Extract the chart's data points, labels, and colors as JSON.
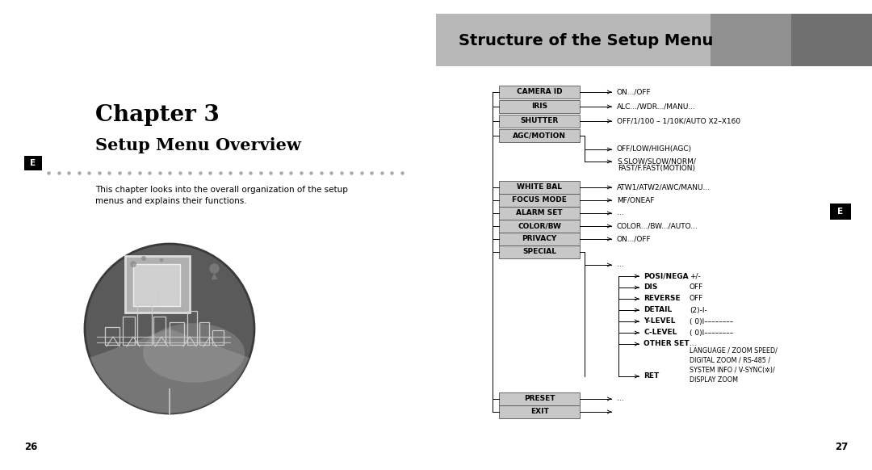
{
  "bg_color": "#ffffff",
  "left_page": {
    "chapter_title": "Chapter 3",
    "section_title": "Setup Menu Overview",
    "e_badge_text": "E",
    "body_text": "This chapter looks into the overall organization of the setup\nmenus and explains their functions.",
    "page_number": "26"
  },
  "right_page": {
    "header_text": "Structure of the Setup Menu",
    "e_badge_text": "E",
    "page_number": "27"
  },
  "menu_items_main": [
    {
      "label": "CAMERA ID",
      "value": "ON.../OFF"
    },
    {
      "label": "IRIS",
      "value": "ALC.../WDR.../MANU..."
    },
    {
      "label": "SHUTTER",
      "value": "OFF/1/100 – 1/10K/AUTO X2–X160"
    },
    {
      "label": "AGC/MOTION",
      "value": "OFF/LOW/HIGH(AGC)",
      "extra": "S.SLOW/SLOW/NORM/\nFAST/F.FAST(MOTION)"
    },
    {
      "label": "WHITE BAL",
      "value": "ATW1/ATW2/AWC/MANU..."
    },
    {
      "label": "FOCUS MODE",
      "value": "MF/ONEAF"
    },
    {
      "label": "ALARM SET",
      "value": "..."
    },
    {
      "label": "COLOR/BW",
      "value": "COLOR.../BW.../AUTO..."
    },
    {
      "label": "PRIVACY",
      "value": "ON.../OFF"
    },
    {
      "label": "SPECIAL",
      "value": "..."
    },
    {
      "label": "PRESET",
      "value": "..."
    },
    {
      "label": "EXIT",
      "value": ""
    }
  ],
  "special_sub_items": [
    {
      "label": "POSI/NEGA",
      "value": "+/-"
    },
    {
      "label": "DIS",
      "value": "OFF"
    },
    {
      "label": "REVERSE",
      "value": "OFF"
    },
    {
      "label": "DETAIL",
      "value": "(2)-I-"
    },
    {
      "label": "Y-LEVEL",
      "value": "( 0)I––––––––"
    },
    {
      "label": "C-LEVEL",
      "value": "( 0)I––––––––"
    },
    {
      "label": "OTHER SET",
      "value": "..."
    }
  ],
  "other_set_sub": "LANGUAGE / ZOOM SPEED/\nDIGITAL ZOOM / RS-485 /\nSYSTEM INFO / V-SYNC(✲)/\nDISPLAY ZOOM",
  "box_fill": "#c8c8c8",
  "box_edge": "#555555",
  "font_size_chapter": 20,
  "font_size_section": 15,
  "font_size_body": 7.5,
  "font_size_menu": 6.5,
  "font_size_header": 14
}
